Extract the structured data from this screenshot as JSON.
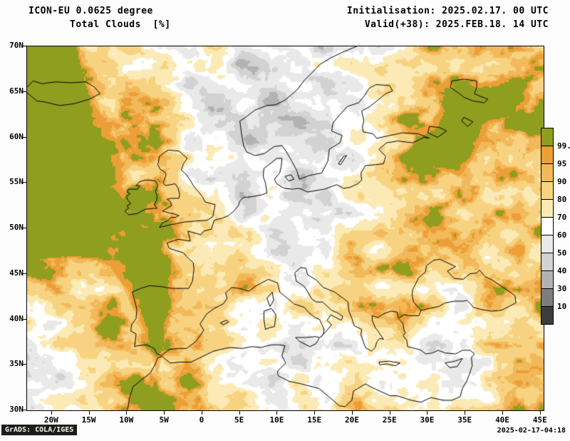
{
  "header": {
    "model_line": "ICON-EU 0.0625 degree",
    "field_line": "Total Clouds  [%]",
    "init_line": "Initialisation: 2025.02.17. 00 UTC",
    "valid_line": "Valid(+38): 2025.FEB.18. 14 UTC"
  },
  "footer": {
    "credit": "GrADS: COLA/IGES",
    "created": "2025-02-17-04:18"
  },
  "chart_data": {
    "type": "heatmap",
    "title": "Total Clouds [%]",
    "model": "ICON-EU 0.0625 degree",
    "init_time": "2025.02.17. 00 UTC",
    "valid_time": "2025.FEB.18. 14 UTC",
    "forecast_hour": "+38",
    "units": "%",
    "region": "Europe",
    "lon_range": [
      -23.3,
      45.4
    ],
    "lat_range": [
      30,
      70
    ],
    "x_ticks": [
      {
        "label": "20W",
        "lon": -20
      },
      {
        "label": "15W",
        "lon": -15
      },
      {
        "label": "10W",
        "lon": -10
      },
      {
        "label": "5W",
        "lon": -5
      },
      {
        "label": "0",
        "lon": 0
      },
      {
        "label": "5E",
        "lon": 5
      },
      {
        "label": "10E",
        "lon": 10
      },
      {
        "label": "15E",
        "lon": 15
      },
      {
        "label": "20E",
        "lon": 20
      },
      {
        "label": "25E",
        "lon": 25
      },
      {
        "label": "30E",
        "lon": 30
      },
      {
        "label": "35E",
        "lon": 35
      },
      {
        "label": "40E",
        "lon": 40
      },
      {
        "label": "45E",
        "lon": 45
      }
    ],
    "y_ticks": [
      {
        "label": "70N",
        "lat": 70
      },
      {
        "label": "65N",
        "lat": 65
      },
      {
        "label": "60N",
        "lat": 60
      },
      {
        "label": "55N",
        "lat": 55
      },
      {
        "label": "50N",
        "lat": 50
      },
      {
        "label": "45N",
        "lat": 45
      },
      {
        "label": "40N",
        "lat": 40
      },
      {
        "label": "35N",
        "lat": 35
      },
      {
        "label": "30N",
        "lat": 30
      }
    ],
    "levels": [
      10,
      30,
      40,
      50,
      60,
      70,
      80,
      90,
      95,
      99.5
    ],
    "palette": [
      "#3c3c3c",
      "#7d7d7d",
      "#b2b2b2",
      "#d2d2d2",
      "#e9e9e9",
      "#ffffff",
      "#fbeab5",
      "#f7d381",
      "#f2b95b",
      "#ec9f36",
      "#8f9e1f"
    ],
    "colorbar_labels": [
      "99.5",
      "95",
      "90",
      "80",
      "70",
      "60",
      "50",
      "40",
      "30",
      "10"
    ],
    "grid": {
      "description": "Approximate total cloud cover in %, 13 columns spanning lon -23..45 (west to east), 8 rows spanning lat 70..30 (north to south), read from the plot.",
      "values": [
        [
          100,
          100,
          85,
          62,
          75,
          55,
          50,
          55,
          60,
          85,
          90,
          92,
          95
        ],
        [
          100,
          100,
          95,
          80,
          55,
          55,
          50,
          55,
          75,
          92,
          100,
          100,
          96
        ],
        [
          100,
          100,
          98,
          92,
          60,
          50,
          55,
          50,
          70,
          100,
          100,
          93,
          90
        ],
        [
          100,
          100,
          98,
          94,
          80,
          58,
          48,
          52,
          75,
          88,
          94,
          92,
          90
        ],
        [
          100,
          98,
          98,
          100,
          92,
          90,
          60,
          70,
          82,
          86,
          78,
          85,
          88
        ],
        [
          70,
          80,
          95,
          100,
          92,
          80,
          72,
          80,
          88,
          82,
          70,
          85,
          90
        ],
        [
          58,
          68,
          88,
          98,
          88,
          65,
          55,
          55,
          60,
          55,
          60,
          80,
          85
        ],
        [
          55,
          65,
          85,
          95,
          90,
          72,
          58,
          78,
          90,
          85,
          80,
          90,
          95
        ]
      ]
    }
  }
}
